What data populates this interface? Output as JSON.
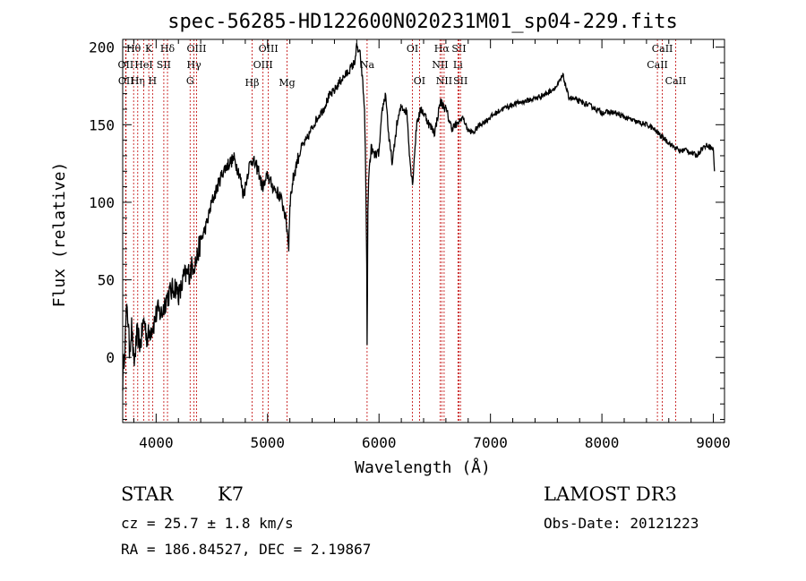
{
  "chart_data": {
    "type": "line",
    "title": "spec-56285-HD122600N020231M01_sp04-229.fits",
    "xlabel": "Wavelength (Å)",
    "ylabel": "Flux (relative)",
    "xlim": [
      3700,
      9100
    ],
    "ylim": [
      -42,
      205
    ],
    "xticks": [
      {
        "value": 4000,
        "label": "4000"
      },
      {
        "value": 5000,
        "label": "5000"
      },
      {
        "value": 6000,
        "label": "6000"
      },
      {
        "value": 7000,
        "label": "7000"
      },
      {
        "value": 8000,
        "label": "8000"
      },
      {
        "value": 9000,
        "label": "9000"
      }
    ],
    "yticks": [
      {
        "value": 0,
        "label": "0"
      },
      {
        "value": 50,
        "label": "50"
      },
      {
        "value": 100,
        "label": "100"
      },
      {
        "value": 150,
        "label": "150"
      },
      {
        "value": 200,
        "label": "200"
      }
    ],
    "series": [
      {
        "name": "spectrum",
        "x": [
          3700,
          3720,
          3740,
          3760,
          3780,
          3800,
          3830,
          3860,
          3890,
          3920,
          3950,
          3980,
          4010,
          4050,
          4090,
          4130,
          4170,
          4210,
          4250,
          4300,
          4330,
          4360,
          4400,
          4450,
          4500,
          4550,
          4600,
          4650,
          4700,
          4750,
          4780,
          4800,
          4830,
          4860,
          4890,
          4920,
          4950,
          4980,
          5000,
          5030,
          5070,
          5110,
          5150,
          5180,
          5190,
          5200,
          5230,
          5260,
          5300,
          5350,
          5400,
          5450,
          5500,
          5550,
          5600,
          5650,
          5700,
          5740,
          5780,
          5800,
          5830,
          5850,
          5870,
          5880,
          5890,
          5893,
          5896,
          5900,
          5910,
          5930,
          5960,
          6000,
          6030,
          6060,
          6090,
          6120,
          6160,
          6200,
          6250,
          6280,
          6300,
          6340,
          6380,
          6420,
          6450,
          6500,
          6550,
          6600,
          6650,
          6700,
          6750,
          6800,
          6850,
          6900,
          6950,
          7000,
          7100,
          7200,
          7300,
          7400,
          7500,
          7600,
          7650,
          7700,
          7800,
          7900,
          8000,
          8100,
          8200,
          8300,
          8400,
          8450,
          8500,
          8540,
          8580,
          8620,
          8660,
          8700,
          8750,
          8800,
          8850,
          8900,
          8950,
          9000,
          9010
        ],
        "y": [
          -15,
          10,
          35,
          5,
          20,
          -5,
          15,
          8,
          25,
          12,
          18,
          22,
          30,
          28,
          38,
          42,
          46,
          40,
          52,
          55,
          60,
          62,
          75,
          85,
          100,
          110,
          120,
          125,
          128,
          118,
          105,
          110,
          122,
          128,
          124,
          120,
          110,
          112,
          118,
          112,
          108,
          104,
          95,
          80,
          70,
          100,
          115,
          125,
          135,
          140,
          148,
          155,
          160,
          168,
          172,
          178,
          182,
          186,
          190,
          200,
          195,
          180,
          160,
          120,
          60,
          8,
          40,
          95,
          120,
          135,
          130,
          132,
          160,
          170,
          140,
          125,
          150,
          162,
          158,
          125,
          112,
          152,
          160,
          155,
          150,
          145,
          165,
          160,
          148,
          150,
          155,
          146,
          145,
          150,
          152,
          155,
          160,
          163,
          165,
          167,
          170,
          175,
          182,
          168,
          165,
          162,
          158,
          158,
          155,
          152,
          150,
          148,
          145,
          142,
          140,
          137,
          135,
          133,
          134,
          132,
          130,
          135,
          137,
          134,
          120
        ]
      }
    ],
    "lines": [
      {
        "label": "Hθ",
        "wave": 3798,
        "row": 1
      },
      {
        "label": "OII",
        "wave": 3727,
        "row": 2
      },
      {
        "label": "OII",
        "wave": 3730,
        "row": 3
      },
      {
        "label": "Hη",
        "wave": 3835,
        "row": 3
      },
      {
        "label": "K",
        "wave": 3934,
        "row": 1
      },
      {
        "label": "HeI",
        "wave": 3889,
        "row": 2
      },
      {
        "label": "SII",
        "wave": 4069,
        "row": 2
      },
      {
        "label": "H",
        "wave": 3968,
        "row": 3
      },
      {
        "label": "Hδ",
        "wave": 4102,
        "row": 1
      },
      {
        "label": "OIII",
        "wave": 4363,
        "row": 1
      },
      {
        "label": "Hγ",
        "wave": 4340,
        "row": 2
      },
      {
        "label": "G",
        "wave": 4305,
        "row": 3
      },
      {
        "label": "Hβ",
        "wave": 4861,
        "row": 4
      },
      {
        "label": "OIII",
        "wave": 5007,
        "row": 1
      },
      {
        "label": "OIII",
        "wave": 4959,
        "row": 2
      },
      {
        "label": "Mg",
        "wave": 5175,
        "row": 4
      },
      {
        "label": "Na",
        "wave": 5893,
        "row": 2
      },
      {
        "label": "OI",
        "wave": 6300,
        "row": 1
      },
      {
        "label": "OI",
        "wave": 6363,
        "row": 3
      },
      {
        "label": "Hα",
        "wave": 6563,
        "row": 1
      },
      {
        "label": "NII",
        "wave": 6548,
        "row": 2
      },
      {
        "label": "NII",
        "wave": 6584,
        "row": 3
      },
      {
        "label": "SII",
        "wave": 6717,
        "row": 1
      },
      {
        "label": "Li",
        "wave": 6708,
        "row": 2
      },
      {
        "label": "SII",
        "wave": 6731,
        "row": 3
      },
      {
        "label": "CaII",
        "wave": 8542,
        "row": 1
      },
      {
        "label": "CaII",
        "wave": 8498,
        "row": 2
      },
      {
        "label": "CaII",
        "wave": 8662,
        "row": 3
      }
    ]
  },
  "info": {
    "object_class": "STAR",
    "subclass": "K7",
    "survey": "LAMOST DR3",
    "cz_line": "cz = 25.7 ± 1.8 km/s",
    "obs_date": "Obs-Date: 20121223",
    "radec_line": "RA = 186.84527, DEC =   2.19867"
  },
  "colors": {
    "line_marker": "#c00000",
    "spectrum": "#000000"
  }
}
